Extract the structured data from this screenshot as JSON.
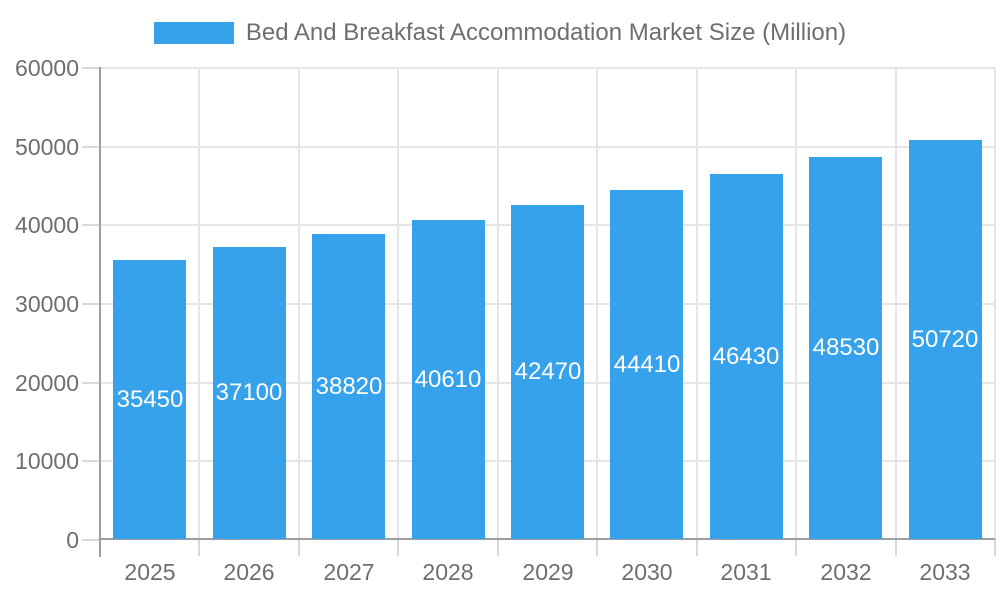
{
  "chart_data": {
    "type": "bar",
    "title": "Bed And Breakfast Accommodation Market Size (Million)",
    "legend_position": "top",
    "categories": [
      "2025",
      "2026",
      "2027",
      "2028",
      "2029",
      "2030",
      "2031",
      "2032",
      "2033"
    ],
    "values": [
      35450,
      37100,
      38820,
      40610,
      42470,
      44410,
      46430,
      48530,
      50720
    ],
    "value_labels": [
      "35450",
      "37100",
      "38820",
      "40610",
      "42470",
      "44410",
      "46430",
      "48530",
      "50720"
    ],
    "xlabel": "",
    "ylabel": "",
    "ylim": [
      0,
      60000
    ],
    "ytick_step": 10000,
    "yticks": [
      "0",
      "10000",
      "20000",
      "30000",
      "40000",
      "50000",
      "60000"
    ],
    "grid": true,
    "colors": {
      "bar": "#36a2eb",
      "value_label": "#ffffff",
      "axis": "#9e9e9e",
      "grid": "#e5e5e5",
      "tick": "#d9d9d9",
      "text": "#6e6e6e",
      "background": "#ffffff"
    }
  }
}
